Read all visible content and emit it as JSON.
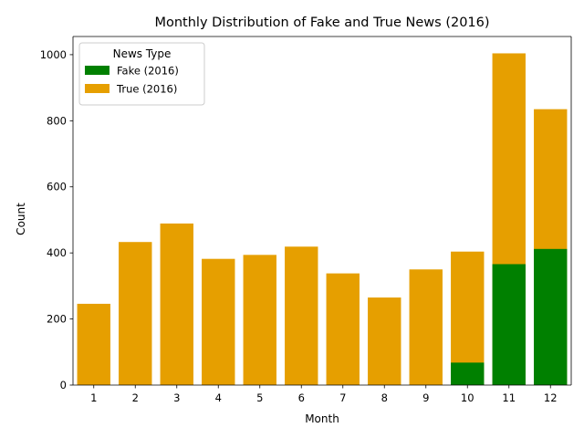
{
  "chart_data": {
    "type": "bar",
    "title": "Monthly Distribution of Fake and True News (2016)",
    "xlabel": "Month",
    "ylabel": "Count",
    "ylim": [
      0,
      1055
    ],
    "yticks": [
      0,
      200,
      400,
      600,
      800,
      1000
    ],
    "categories": [
      "1",
      "2",
      "3",
      "4",
      "5",
      "6",
      "7",
      "8",
      "9",
      "10",
      "11",
      "12"
    ],
    "series": [
      {
        "name": "True (2016)",
        "color": "#e69f00",
        "values": [
          246,
          433,
          489,
          382,
          394,
          419,
          338,
          265,
          350,
          404,
          1004,
          835
        ]
      },
      {
        "name": "Fake (2016)",
        "color": "#008000",
        "values": [
          0,
          0,
          0,
          0,
          0,
          0,
          0,
          0,
          0,
          68,
          366,
          412
        ]
      }
    ],
    "legend": {
      "title": "News Type",
      "placement": "top-left",
      "entries": [
        {
          "label": "Fake (2016)",
          "color": "#008000"
        },
        {
          "label": "True (2016)",
          "color": "#e69f00"
        }
      ]
    },
    "grid": false
  }
}
